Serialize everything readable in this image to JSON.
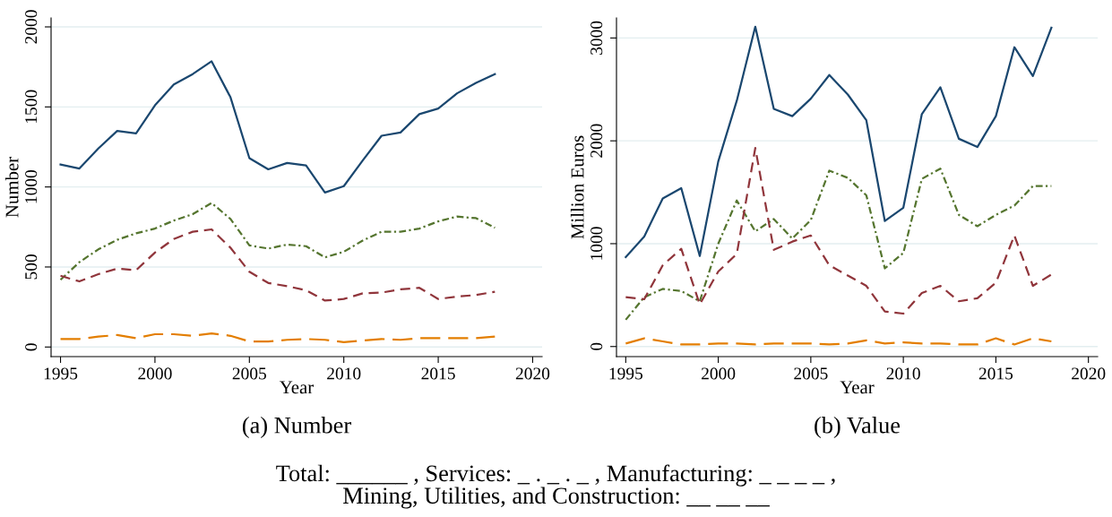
{
  "chart_data": [
    {
      "type": "line",
      "title": "(a) Number",
      "xlabel": "Year",
      "ylabel": "Number",
      "x": [
        1995,
        1996,
        1997,
        1998,
        1999,
        2000,
        2001,
        2002,
        2003,
        2004,
        2005,
        2006,
        2007,
        2008,
        2009,
        2010,
        2011,
        2012,
        2013,
        2014,
        2015,
        2016,
        2017,
        2018
      ],
      "series": [
        {
          "color": "#1a476f",
          "line_style": "solid",
          "values": [
            1140,
            1115,
            1240,
            1350,
            1335,
            1510,
            1640,
            1705,
            1785,
            1560,
            1180,
            1110,
            1150,
            1135,
            965,
            1005,
            1165,
            1320,
            1340,
            1455,
            1490,
            1585,
            1650,
            1705
          ]
        },
        {
          "color": "#55752f",
          "line_style": "dashdot",
          "values": [
            420,
            530,
            610,
            670,
            710,
            740,
            790,
            830,
            900,
            800,
            635,
            615,
            640,
            630,
            560,
            595,
            665,
            720,
            720,
            740,
            785,
            815,
            805,
            745
          ]
        },
        {
          "color": "#90353b",
          "line_style": "dashed",
          "values": [
            445,
            410,
            455,
            490,
            480,
            590,
            675,
            720,
            735,
            620,
            470,
            400,
            380,
            355,
            290,
            300,
            335,
            340,
            360,
            370,
            300,
            315,
            325,
            345
          ]
        },
        {
          "color": "#e37e00",
          "line_style": "longdash",
          "values": [
            50,
            50,
            65,
            75,
            55,
            80,
            80,
            70,
            85,
            70,
            35,
            35,
            45,
            50,
            45,
            30,
            40,
            50,
            45,
            55,
            55,
            55,
            55,
            65
          ]
        }
      ],
      "xlim": [
        1994.5,
        2020.5
      ],
      "xticks": [
        1995,
        2000,
        2005,
        2010,
        2015,
        2020
      ],
      "ylim": [
        -60,
        2056
      ],
      "yticks": [
        0,
        500,
        1000,
        1500,
        2000
      ],
      "grid": "y",
      "marker": "none",
      "annotations": [
        "Total: ______ , Services: _ . _ . _ , Manufacturing: _ _ _ _ ,\nMining, Utilities, and Construction: __ __ __"
      ]
    },
    {
      "type": "line",
      "title": "(b) Value",
      "xlabel": "Year",
      "ylabel": "Million Euros",
      "x": [
        1995,
        1996,
        1997,
        1998,
        1999,
        2000,
        2001,
        2002,
        2003,
        2004,
        2005,
        2006,
        2007,
        2008,
        2009,
        2010,
        2011,
        2012,
        2013,
        2014,
        2015,
        2016,
        2017,
        2018
      ],
      "series": [
        {
          "color": "#1a476f",
          "line_style": "solid",
          "values": [
            870,
            1070,
            1440,
            1540,
            880,
            1800,
            2390,
            3110,
            2310,
            2240,
            2410,
            2640,
            2450,
            2200,
            1220,
            1350,
            2260,
            2520,
            2020,
            1940,
            2240,
            2910,
            2630,
            3100
          ]
        },
        {
          "color": "#55752f",
          "line_style": "dashdot",
          "values": [
            260,
            480,
            560,
            540,
            440,
            1000,
            1420,
            1120,
            1240,
            1050,
            1230,
            1710,
            1640,
            1470,
            760,
            910,
            1630,
            1730,
            1280,
            1170,
            1280,
            1370,
            1560,
            1560
          ]
        },
        {
          "color": "#90353b",
          "line_style": "dashed",
          "values": [
            480,
            460,
            790,
            950,
            410,
            730,
            900,
            1930,
            940,
            1020,
            1080,
            790,
            690,
            590,
            340,
            320,
            520,
            590,
            440,
            470,
            620,
            1080,
            590,
            700
          ]
        },
        {
          "color": "#e37e00",
          "line_style": "longdash",
          "values": [
            30,
            80,
            50,
            20,
            20,
            30,
            30,
            20,
            30,
            30,
            30,
            20,
            30,
            60,
            30,
            40,
            30,
            30,
            20,
            20,
            80,
            20,
            80,
            50
          ]
        }
      ],
      "xlim": [
        1994.5,
        2020.5
      ],
      "xticks": [
        1995,
        2000,
        2005,
        2010,
        2015,
        2020
      ],
      "ylim": [
        -98,
        3195
      ],
      "yticks": [
        0,
        1000,
        2000,
        3000
      ],
      "grid": "y",
      "marker": "none"
    }
  ]
}
